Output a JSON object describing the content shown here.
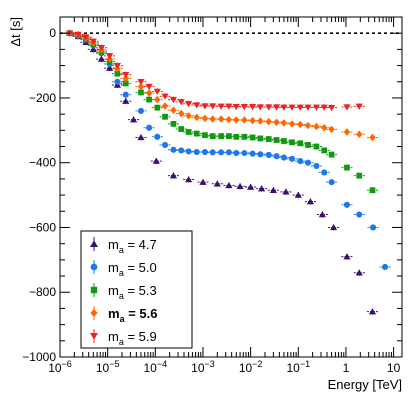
{
  "chart_data": {
    "type": "scatter",
    "title": "",
    "xlabel": "Energy [TeV]",
    "ylabel": "Δt [s]",
    "x_scale": "log",
    "xlim": [
      1e-06,
      15
    ],
    "ylim": [
      -1000,
      50
    ],
    "y_ticks": [
      0,
      -200,
      -400,
      -600,
      -800,
      -1000
    ],
    "y_tick_labels": [
      "0",
      "−200",
      "−400",
      "−600",
      "−800",
      "−1000"
    ],
    "x_tick_labels": [
      {
        "base": "10",
        "exp": "−6",
        "value": 1e-06
      },
      {
        "base": "10",
        "exp": "−5",
        "value": 1e-05
      },
      {
        "base": "10",
        "exp": "−4",
        "value": 0.0001
      },
      {
        "base": "10",
        "exp": "−3",
        "value": 0.001
      },
      {
        "base": "10",
        "exp": "−2",
        "value": 0.01
      },
      {
        "base": "10",
        "exp": "−1",
        "value": 0.1
      },
      {
        "base": "1",
        "exp": "",
        "value": 1
      },
      {
        "base": "10",
        "exp": "",
        "value": 10
      }
    ],
    "reference_line": {
      "y": 0,
      "style": "dashed"
    },
    "legend_position": "bottom-left",
    "grid": false,
    "series": [
      {
        "name": "4.7",
        "name_prefix": "m",
        "name_sub": "a",
        "name_suffix": " = ",
        "bold": false,
        "color": "#3b0f6f",
        "marker": "triangle-up",
        "points": [
          [
            1.6e-06,
            0
          ],
          [
            2.4e-06,
            -10
          ],
          [
            3.5e-06,
            -28
          ],
          [
            5e-06,
            -50
          ],
          [
            7.4e-06,
            -80
          ],
          [
            1.1e-05,
            -108
          ],
          [
            1.6e-05,
            -160
          ],
          [
            2.4e-05,
            -210
          ],
          [
            3.5e-05,
            -267
          ],
          [
            5e-05,
            -322
          ],
          [
            0.000105,
            -395
          ],
          [
            0.00024,
            -440
          ],
          [
            0.0005,
            -452
          ],
          [
            0.001,
            -460
          ],
          [
            0.002,
            -465
          ],
          [
            0.0035,
            -470
          ],
          [
            0.006,
            -473
          ],
          [
            0.01,
            -475
          ],
          [
            0.017,
            -480
          ],
          [
            0.03,
            -485
          ],
          [
            0.055,
            -490
          ],
          [
            0.1,
            -500
          ],
          [
            0.18,
            -520
          ],
          [
            0.32,
            -560
          ],
          [
            0.55,
            -600
          ],
          [
            1.05,
            -690
          ],
          [
            1.9,
            -740
          ],
          [
            3.6,
            -860
          ]
        ]
      },
      {
        "name": "5.0",
        "name_prefix": "m",
        "name_sub": "a",
        "name_suffix": " = ",
        "bold": false,
        "color": "#1f77ee",
        "marker": "circle",
        "points": [
          [
            1.6e-06,
            0
          ],
          [
            2.4e-06,
            -8
          ],
          [
            3.5e-06,
            -20
          ],
          [
            5e-06,
            -38
          ],
          [
            7.4e-06,
            -62
          ],
          [
            1.1e-05,
            -95
          ],
          [
            1.6e-05,
            -150
          ],
          [
            2.4e-05,
            -190
          ],
          [
            5e-05,
            -240
          ],
          [
            7.4e-05,
            -292
          ],
          [
            0.00011,
            -320
          ],
          [
            0.00016,
            -345
          ],
          [
            0.00024,
            -360
          ],
          [
            0.00035,
            -362
          ],
          [
            0.0005,
            -365
          ],
          [
            0.00074,
            -367
          ],
          [
            0.0011,
            -367
          ],
          [
            0.0016,
            -368
          ],
          [
            0.0024,
            -368
          ],
          [
            0.0035,
            -368
          ],
          [
            0.005,
            -370
          ],
          [
            0.0074,
            -370
          ],
          [
            0.011,
            -372
          ],
          [
            0.016,
            -374
          ],
          [
            0.024,
            -376
          ],
          [
            0.035,
            -380
          ],
          [
            0.05,
            -384
          ],
          [
            0.074,
            -388
          ],
          [
            0.11,
            -395
          ],
          [
            0.16,
            -400
          ],
          [
            0.24,
            -410
          ],
          [
            0.35,
            -430
          ],
          [
            0.5,
            -460
          ],
          [
            1.05,
            -530
          ],
          [
            1.9,
            -560
          ],
          [
            3.7,
            -600
          ],
          [
            6.6,
            -722
          ]
        ]
      },
      {
        "name": "5.3",
        "name_prefix": "m",
        "name_sub": "a",
        "name_suffix": " = ",
        "bold": false,
        "color": "#119911",
        "marker": "square",
        "points": [
          [
            1.6e-06,
            0
          ],
          [
            2.4e-06,
            -6
          ],
          [
            3.5e-06,
            -18
          ],
          [
            5e-06,
            -34
          ],
          [
            7.4e-06,
            -58
          ],
          [
            1.1e-05,
            -88
          ],
          [
            1.6e-05,
            -125
          ],
          [
            2.4e-05,
            -155
          ],
          [
            5e-05,
            -183
          ],
          [
            7.4e-05,
            -205
          ],
          [
            0.00011,
            -230
          ],
          [
            0.00016,
            -258
          ],
          [
            0.00024,
            -280
          ],
          [
            0.00035,
            -296
          ],
          [
            0.0005,
            -305
          ],
          [
            0.00074,
            -310
          ],
          [
            0.0011,
            -315
          ],
          [
            0.0016,
            -318
          ],
          [
            0.0024,
            -318
          ],
          [
            0.0035,
            -318
          ],
          [
            0.005,
            -320
          ],
          [
            0.0074,
            -320
          ],
          [
            0.011,
            -322
          ],
          [
            0.016,
            -325
          ],
          [
            0.024,
            -327
          ],
          [
            0.035,
            -330
          ],
          [
            0.05,
            -333
          ],
          [
            0.074,
            -337
          ],
          [
            0.11,
            -340
          ],
          [
            0.16,
            -345
          ],
          [
            0.24,
            -350
          ],
          [
            0.35,
            -362
          ],
          [
            0.5,
            -375
          ],
          [
            1.05,
            -415
          ],
          [
            1.9,
            -440
          ],
          [
            3.6,
            -485
          ]
        ]
      },
      {
        "name": "5.6",
        "name_prefix": "m",
        "name_sub": "a",
        "name_suffix": " = ",
        "bold": true,
        "color": "#ff6600",
        "marker": "diamond",
        "points": [
          [
            1.6e-06,
            0
          ],
          [
            2.4e-06,
            -5
          ],
          [
            3.5e-06,
            -15
          ],
          [
            5e-06,
            -30
          ],
          [
            7.4e-06,
            -52
          ],
          [
            1.1e-05,
            -80
          ],
          [
            1.6e-05,
            -110
          ],
          [
            2.4e-05,
            -140
          ],
          [
            5e-05,
            -165
          ],
          [
            7.4e-05,
            -185
          ],
          [
            0.00011,
            -205
          ],
          [
            0.00016,
            -225
          ],
          [
            0.00024,
            -238
          ],
          [
            0.00035,
            -248
          ],
          [
            0.0005,
            -255
          ],
          [
            0.00074,
            -260
          ],
          [
            0.0011,
            -263
          ],
          [
            0.0016,
            -265
          ],
          [
            0.0024,
            -265
          ],
          [
            0.0035,
            -267
          ],
          [
            0.005,
            -268
          ],
          [
            0.0074,
            -268
          ],
          [
            0.011,
            -270
          ],
          [
            0.016,
            -271
          ],
          [
            0.024,
            -273
          ],
          [
            0.035,
            -275
          ],
          [
            0.05,
            -277
          ],
          [
            0.074,
            -280
          ],
          [
            0.11,
            -282
          ],
          [
            0.16,
            -285
          ],
          [
            0.24,
            -288
          ],
          [
            0.35,
            -292
          ],
          [
            0.5,
            -297
          ],
          [
            1.05,
            -305
          ],
          [
            1.9,
            -312
          ],
          [
            3.6,
            -322
          ]
        ]
      },
      {
        "name": "5.9",
        "name_prefix": "m",
        "name_sub": "a",
        "name_suffix": " = ",
        "bold": false,
        "color": "#ee2222",
        "marker": "triangle-down",
        "points": [
          [
            1.6e-06,
            0
          ],
          [
            2.4e-06,
            -4
          ],
          [
            3.5e-06,
            -12
          ],
          [
            5e-06,
            -25
          ],
          [
            7.4e-06,
            -45
          ],
          [
            1.1e-05,
            -70
          ],
          [
            1.6e-05,
            -100
          ],
          [
            2.4e-05,
            -128
          ],
          [
            5e-05,
            -150
          ],
          [
            7.4e-05,
            -165
          ],
          [
            0.00011,
            -180
          ],
          [
            0.00016,
            -195
          ],
          [
            0.00024,
            -205
          ],
          [
            0.00035,
            -212
          ],
          [
            0.0005,
            -218
          ],
          [
            0.00074,
            -222
          ],
          [
            0.0011,
            -225
          ],
          [
            0.0016,
            -225
          ],
          [
            0.0024,
            -226
          ],
          [
            0.0035,
            -226
          ],
          [
            0.005,
            -227
          ],
          [
            0.0074,
            -227
          ],
          [
            0.011,
            -227
          ],
          [
            0.016,
            -228
          ],
          [
            0.024,
            -228
          ],
          [
            0.035,
            -228
          ],
          [
            0.05,
            -229
          ],
          [
            0.074,
            -229
          ],
          [
            0.11,
            -229
          ],
          [
            0.16,
            -229
          ],
          [
            0.24,
            -229
          ],
          [
            0.35,
            -229
          ],
          [
            0.5,
            -230
          ],
          [
            1.05,
            -228
          ],
          [
            1.9,
            -226
          ]
        ]
      }
    ]
  }
}
